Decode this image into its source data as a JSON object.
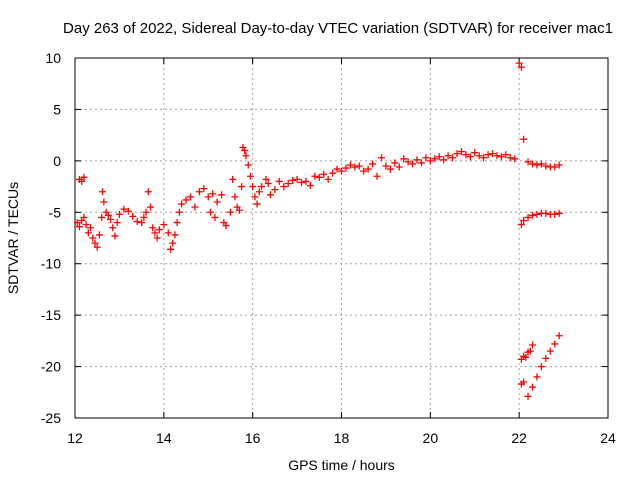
{
  "chart_data": {
    "type": "scatter",
    "title": "Day 263 of 2022, Sidereal Day-to-day VTEC variation (SDTVAR) for receiver mac1",
    "xlabel": "GPS time / hours",
    "ylabel": "SDTVAR / TECUs",
    "xlim": [
      12,
      24
    ],
    "ylim": [
      -25,
      10
    ],
    "xticks": [
      "12",
      "14",
      "16",
      "18",
      "20",
      "22",
      "24"
    ],
    "yticks": [
      "10",
      "5",
      "0",
      "-5",
      "-10",
      "-15",
      "-20",
      "-25"
    ],
    "grid": true,
    "marker": "+",
    "color": "#ff0000",
    "series": [
      {
        "name": "SDTVAR",
        "points": [
          [
            12.1,
            -1.8
          ],
          [
            12.15,
            -2.0
          ],
          [
            12.2,
            -1.6
          ],
          [
            12.05,
            -6.0
          ],
          [
            12.1,
            -6.4
          ],
          [
            12.15,
            -5.8
          ],
          [
            12.2,
            -5.5
          ],
          [
            12.25,
            -6.2
          ],
          [
            12.3,
            -7.0
          ],
          [
            12.35,
            -6.5
          ],
          [
            12.4,
            -7.5
          ],
          [
            12.45,
            -8.0
          ],
          [
            12.5,
            -8.4
          ],
          [
            12.55,
            -7.2
          ],
          [
            12.6,
            -5.5
          ],
          [
            12.62,
            -3.0
          ],
          [
            12.65,
            -4.0
          ],
          [
            12.7,
            -5.0
          ],
          [
            12.75,
            -5.3
          ],
          [
            12.8,
            -5.7
          ],
          [
            12.85,
            -6.5
          ],
          [
            12.9,
            -7.3
          ],
          [
            12.95,
            -6.0
          ],
          [
            13.0,
            -5.2
          ],
          [
            13.1,
            -4.7
          ],
          [
            13.2,
            -4.9
          ],
          [
            13.3,
            -5.4
          ],
          [
            13.4,
            -5.9
          ],
          [
            13.5,
            -6.0
          ],
          [
            13.55,
            -5.5
          ],
          [
            13.6,
            -5.0
          ],
          [
            13.65,
            -3.0
          ],
          [
            13.7,
            -4.5
          ],
          [
            13.75,
            -6.5
          ],
          [
            13.8,
            -7.0
          ],
          [
            13.85,
            -7.5
          ],
          [
            13.9,
            -6.7
          ],
          [
            14.0,
            -6.2
          ],
          [
            14.1,
            -7.0
          ],
          [
            14.15,
            -8.6
          ],
          [
            14.2,
            -8.0
          ],
          [
            14.25,
            -7.2
          ],
          [
            14.3,
            -6.0
          ],
          [
            14.35,
            -5.0
          ],
          [
            14.4,
            -4.2
          ],
          [
            14.5,
            -3.8
          ],
          [
            14.6,
            -3.5
          ],
          [
            14.7,
            -4.5
          ],
          [
            14.8,
            -3.0
          ],
          [
            14.9,
            -2.7
          ],
          [
            15.0,
            -3.5
          ],
          [
            15.05,
            -5.0
          ],
          [
            15.1,
            -3.2
          ],
          [
            15.15,
            -5.5
          ],
          [
            15.2,
            -4.0
          ],
          [
            15.3,
            -3.3
          ],
          [
            15.35,
            -6.0
          ],
          [
            15.4,
            -6.3
          ],
          [
            15.5,
            -5.0
          ],
          [
            15.55,
            -1.8
          ],
          [
            15.6,
            -3.5
          ],
          [
            15.65,
            -4.5
          ],
          [
            15.7,
            -4.8
          ],
          [
            15.75,
            -2.5
          ],
          [
            15.78,
            1.3
          ],
          [
            15.82,
            1.0
          ],
          [
            15.85,
            0.5
          ],
          [
            15.9,
            -0.4
          ],
          [
            15.95,
            -1.5
          ],
          [
            16.0,
            -2.5
          ],
          [
            16.05,
            -3.5
          ],
          [
            16.1,
            -4.2
          ],
          [
            16.15,
            -3.0
          ],
          [
            16.2,
            -2.5
          ],
          [
            16.3,
            -1.8
          ],
          [
            16.35,
            -2.2
          ],
          [
            16.4,
            -3.3
          ],
          [
            16.5,
            -2.8
          ],
          [
            16.6,
            -2.0
          ],
          [
            16.7,
            -2.5
          ],
          [
            16.8,
            -2.2
          ],
          [
            16.9,
            -1.9
          ],
          [
            17.0,
            -1.8
          ],
          [
            17.1,
            -2.1
          ],
          [
            17.2,
            -2.0
          ],
          [
            17.3,
            -2.4
          ],
          [
            17.4,
            -1.5
          ],
          [
            17.5,
            -1.6
          ],
          [
            17.6,
            -1.3
          ],
          [
            17.7,
            -1.8
          ],
          [
            17.8,
            -1.2
          ],
          [
            17.9,
            -0.8
          ],
          [
            18.0,
            -1.0
          ],
          [
            18.1,
            -0.7
          ],
          [
            18.2,
            -0.4
          ],
          [
            18.3,
            -0.6
          ],
          [
            18.4,
            -0.5
          ],
          [
            18.5,
            -1.0
          ],
          [
            18.6,
            -0.8
          ],
          [
            18.7,
            -0.3
          ],
          [
            18.8,
            -1.5
          ],
          [
            18.9,
            0.3
          ],
          [
            19.0,
            -0.5
          ],
          [
            19.1,
            -0.8
          ],
          [
            19.2,
            -0.2
          ],
          [
            19.3,
            -0.6
          ],
          [
            19.4,
            0.2
          ],
          [
            19.5,
            -0.1
          ],
          [
            19.6,
            -0.3
          ],
          [
            19.7,
            0.1
          ],
          [
            19.8,
            -0.2
          ],
          [
            19.9,
            0.3
          ],
          [
            20.0,
            0.0
          ],
          [
            20.1,
            0.2
          ],
          [
            20.2,
            0.4
          ],
          [
            20.3,
            0.1
          ],
          [
            20.4,
            0.5
          ],
          [
            20.5,
            0.3
          ],
          [
            20.6,
            0.7
          ],
          [
            20.7,
            0.9
          ],
          [
            20.8,
            0.6
          ],
          [
            20.9,
            0.4
          ],
          [
            21.0,
            0.8
          ],
          [
            21.1,
            0.5
          ],
          [
            21.2,
            0.3
          ],
          [
            21.3,
            0.6
          ],
          [
            21.4,
            0.7
          ],
          [
            21.5,
            0.5
          ],
          [
            21.6,
            0.4
          ],
          [
            21.7,
            0.6
          ],
          [
            21.8,
            0.3
          ],
          [
            21.9,
            0.2
          ],
          [
            22.0,
            9.5
          ],
          [
            22.05,
            9.1
          ],
          [
            22.1,
            2.1
          ],
          [
            22.05,
            -6.2
          ],
          [
            22.1,
            -5.8
          ],
          [
            22.2,
            -5.5
          ],
          [
            22.3,
            -5.3
          ],
          [
            22.4,
            -5.2
          ],
          [
            22.5,
            -5.1
          ],
          [
            22.6,
            -5.1
          ],
          [
            22.7,
            -5.2
          ],
          [
            22.8,
            -5.2
          ],
          [
            22.9,
            -5.1
          ],
          [
            22.2,
            -0.1
          ],
          [
            22.3,
            -0.3
          ],
          [
            22.4,
            -0.4
          ],
          [
            22.5,
            -0.3
          ],
          [
            22.6,
            -0.5
          ],
          [
            22.7,
            -0.6
          ],
          [
            22.8,
            -0.6
          ],
          [
            22.9,
            -0.4
          ],
          [
            22.05,
            -19.3
          ],
          [
            22.1,
            -19.0
          ],
          [
            22.15,
            -19.1
          ],
          [
            22.2,
            -18.6
          ],
          [
            22.25,
            -18.5
          ],
          [
            22.3,
            -17.9
          ],
          [
            22.05,
            -21.7
          ],
          [
            22.1,
            -21.5
          ],
          [
            22.2,
            -22.9
          ],
          [
            22.3,
            -22.0
          ],
          [
            22.4,
            -21.0
          ],
          [
            22.5,
            -20.0
          ],
          [
            22.6,
            -19.2
          ],
          [
            22.7,
            -18.5
          ],
          [
            22.8,
            -17.8
          ],
          [
            22.9,
            -17.0
          ]
        ]
      }
    ]
  }
}
